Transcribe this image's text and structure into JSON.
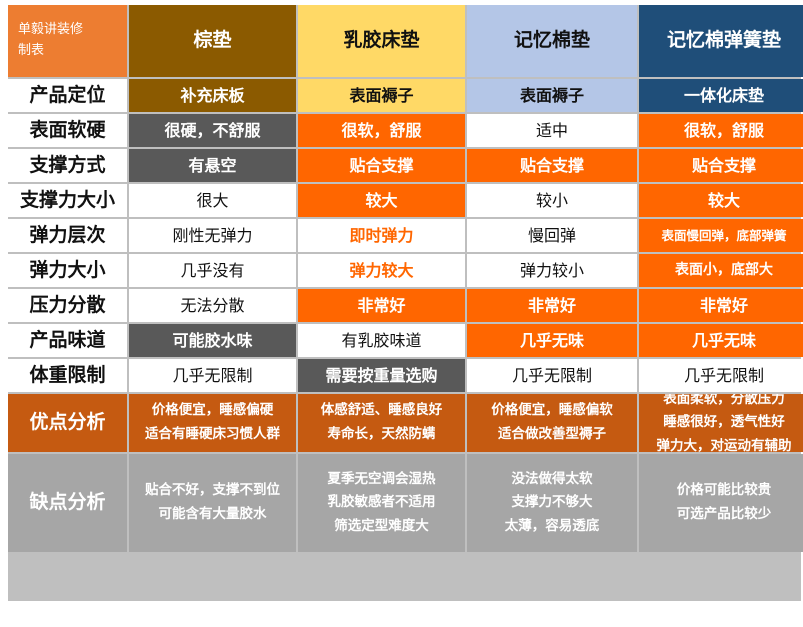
{
  "corner": {
    "line1": "单毅讲装修",
    "line2": "制表"
  },
  "headers": [
    "棕垫",
    "乳胶床垫",
    "记忆棉垫",
    "记忆棉弹簧垫"
  ],
  "rows": [
    {
      "label": "产品定位",
      "cells": [
        "补充床板",
        "表面褥子",
        "表面褥子",
        "一体化床垫"
      ]
    },
    {
      "label": "表面软硬",
      "cells": [
        "很硬，不舒服",
        "很软，舒服",
        "适中",
        "很软，舒服"
      ]
    },
    {
      "label": "支撑方式",
      "cells": [
        "有悬空",
        "贴合支撑",
        "贴合支撑",
        "贴合支撑"
      ]
    },
    {
      "label": "支撑力大小",
      "cells": [
        "很大",
        "较大",
        "较小",
        "较大"
      ]
    },
    {
      "label": "弹力层次",
      "cells": [
        "刚性无弹力",
        "即时弹力",
        "慢回弹",
        "表面慢回弹，底部弹簧"
      ]
    },
    {
      "label": "弹力大小",
      "cells": [
        "几乎没有",
        "弹力较大",
        "弹力较小",
        "表面小，底部大"
      ]
    },
    {
      "label": "压力分散",
      "cells": [
        "无法分散",
        "非常好",
        "非常好",
        "非常好"
      ]
    },
    {
      "label": "产品味道",
      "cells": [
        "可能胶水味",
        "有乳胶味道",
        "几乎无味",
        "几乎无味"
      ]
    },
    {
      "label": "体重限制",
      "cells": [
        "几乎无限制",
        "需要按重量选购",
        "几乎无限制",
        "几乎无限制"
      ]
    }
  ],
  "pros": {
    "label": "优点分析",
    "cells": [
      [
        "价格便宜，睡感偏硬",
        "适合有睡硬床习惯人群"
      ],
      [
        "体感舒适、睡感良好",
        "寿命长，天然防螨"
      ],
      [
        "价格便宜，睡感偏软",
        "适合做改善型褥子"
      ],
      [
        "表面柔软，分散压力",
        "睡感很好，透气性好",
        "弹力大，对运动有辅助"
      ]
    ]
  },
  "cons": {
    "label": "缺点分析",
    "cells": [
      [
        "贴合不好，支撑不到位",
        "可能含有大量胶水"
      ],
      [
        "夏季无空调会湿热",
        "乳胶敏感者不适用",
        "筛选定型难度大"
      ],
      [
        "没法做得太软",
        "支撑力不够大",
        "太薄，容易透底"
      ],
      [
        "价格可能比较贵",
        "可选产品比较少"
      ]
    ]
  },
  "colors": {
    "corner": "#ed7d31",
    "palm": "#8b5a00",
    "latex": "#ffd966",
    "memory": "#b4c6e7",
    "spring": "#1f4e79",
    "highlight": "#ff6600",
    "dark": "#595959",
    "pros": "#c55a11",
    "cons": "#a6a6a6"
  }
}
